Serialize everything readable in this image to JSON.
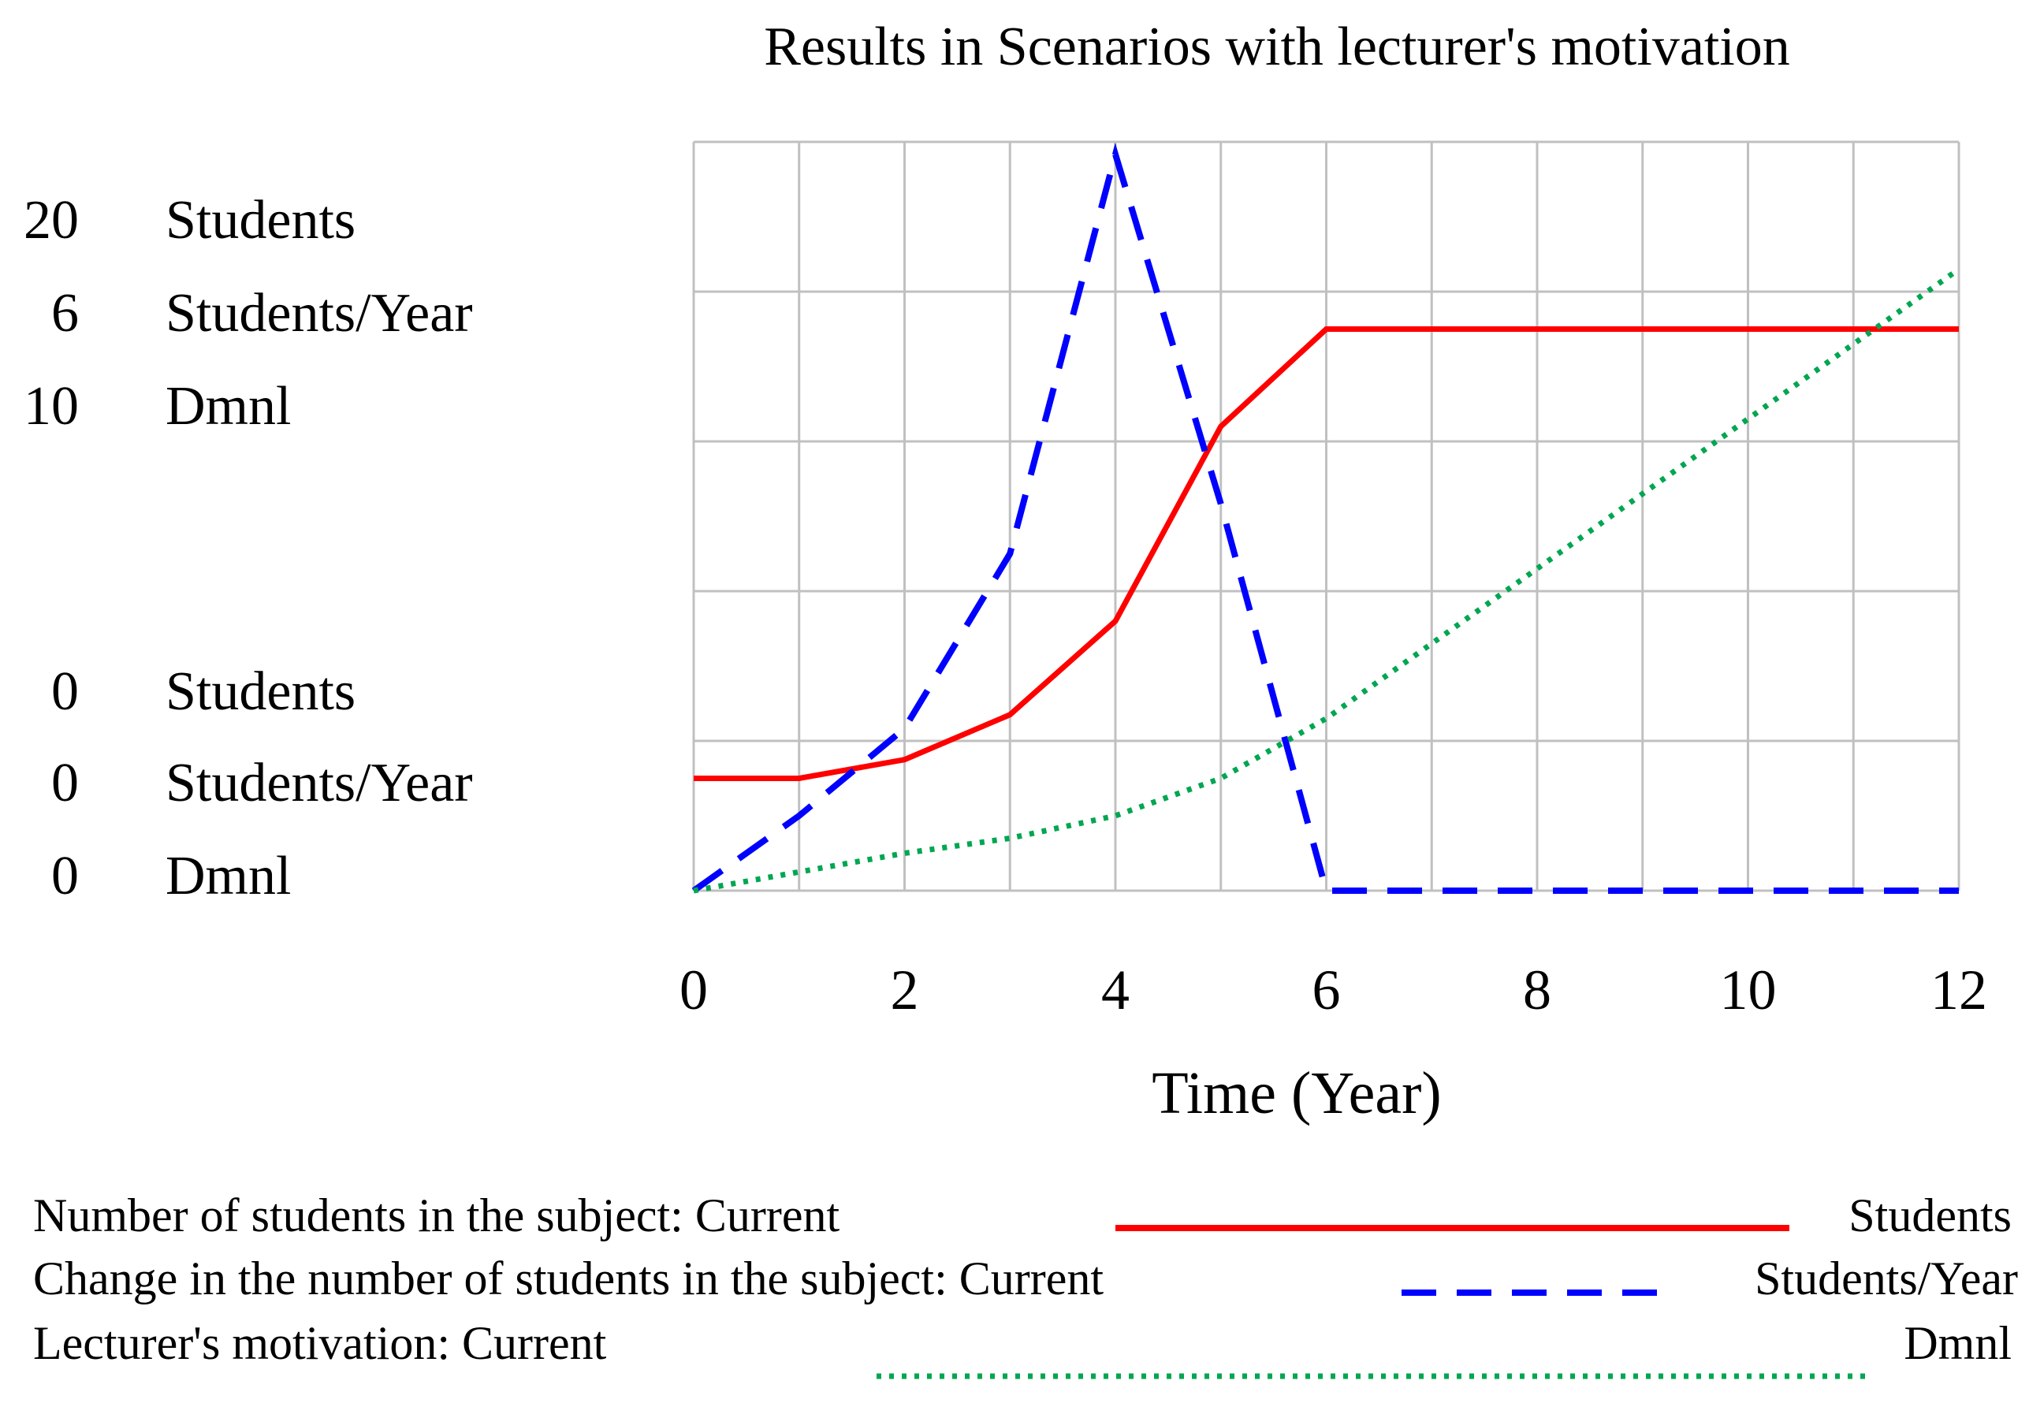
{
  "chart_data": {
    "type": "line",
    "title": "Results in Scenarios with lecturer's motivation",
    "xlabel": "Time (Year)",
    "xlim": [
      0,
      12
    ],
    "x_ticks": [
      "0",
      "2",
      "4",
      "6",
      "8",
      "10",
      "12"
    ],
    "grid": true,
    "y_axes": [
      {
        "top": "20",
        "bottom": "0",
        "unit": "Students"
      },
      {
        "top": "6",
        "bottom": "0",
        "unit": "Students/Year"
      },
      {
        "top": "10",
        "bottom": "0",
        "unit": "Dmnl"
      }
    ],
    "x": [
      0,
      1,
      2,
      3,
      4,
      5,
      6,
      7,
      8,
      9,
      10,
      11,
      12
    ],
    "series": [
      {
        "name": "Number of students in the subject: Current",
        "unit": "Students",
        "ylim": [
          0,
          20
        ],
        "color": "#ff0000",
        "style": "solid",
        "values": [
          3,
          3,
          3.5,
          4.7,
          7.2,
          12.4,
          15,
          15,
          15,
          15,
          15,
          15,
          15
        ]
      },
      {
        "name": "Change in the number of students in the subject: Current",
        "unit": "Students/Year",
        "ylim": [
          0,
          6
        ],
        "color": "#0000ff",
        "style": "dashed",
        "values": [
          0,
          0.6,
          1.3,
          2.7,
          5.9,
          3.1,
          0,
          0,
          0,
          0,
          0,
          0,
          0
        ]
      },
      {
        "name": "Lecturer's motivation: Current",
        "unit": "Dmnl",
        "ylim": [
          0,
          10
        ],
        "color": "#00a651",
        "style": "dotted",
        "values": [
          0,
          0.25,
          0.5,
          0.7,
          1,
          1.5,
          2.3,
          3.3,
          4.3,
          5.3,
          6.3,
          7.3,
          8.3
        ]
      }
    ]
  }
}
